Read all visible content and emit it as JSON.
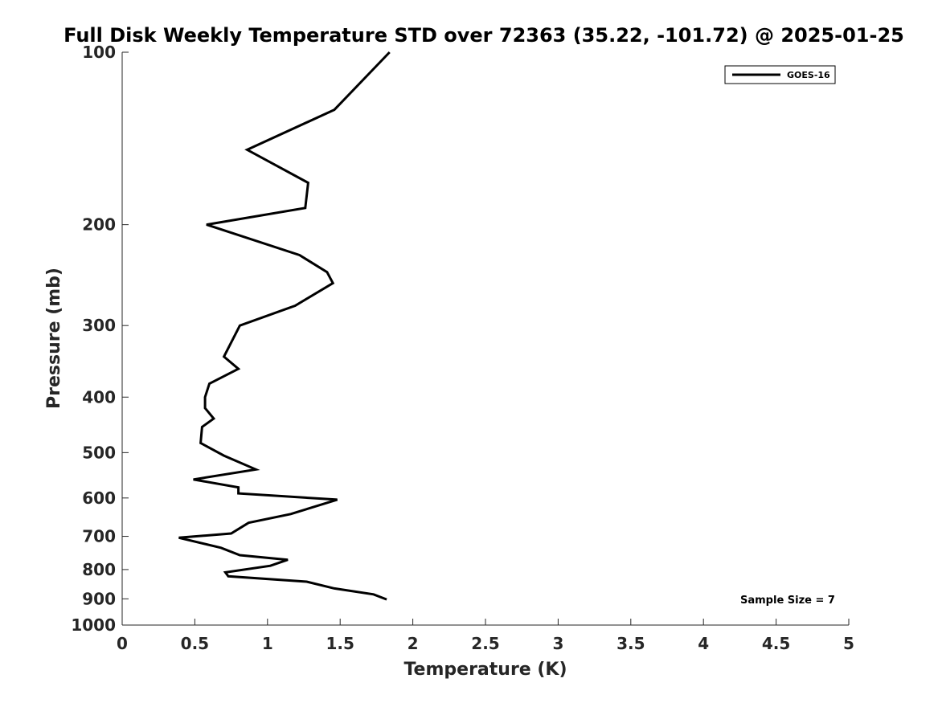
{
  "chart_data": {
    "type": "line",
    "title": "Full Disk Weekly Temperature STD over 72363 (35.22, -101.72) @ 2025-01-25",
    "xlabel": "Temperature (K)",
    "ylabel": "Pressure (mb)",
    "xlim": [
      0,
      5
    ],
    "ylim": [
      100,
      1000
    ],
    "y_scale": "log",
    "y_reversed": true,
    "x_ticks": [
      "0",
      "0.5",
      "1",
      "1.5",
      "2",
      "2.5",
      "3",
      "3.5",
      "4",
      "4.5",
      "5"
    ],
    "x_tick_values": [
      0,
      0.5,
      1,
      1.5,
      2,
      2.5,
      3,
      3.5,
      4,
      4.5,
      5
    ],
    "y_ticks": [
      "100",
      "200",
      "300",
      "400",
      "500",
      "600",
      "700",
      "800",
      "900",
      "1000"
    ],
    "y_tick_values": [
      100,
      200,
      300,
      400,
      500,
      600,
      700,
      800,
      900,
      1000
    ],
    "grid": false,
    "legend_position": "top-right",
    "series": [
      {
        "name": "GOES-16",
        "color": "#000000",
        "points": [
          [
            1.84,
            100
          ],
          [
            1.46,
            126
          ],
          [
            0.86,
            148
          ],
          [
            1.28,
            169
          ],
          [
            1.26,
            187
          ],
          [
            0.58,
            200
          ],
          [
            1.22,
            226
          ],
          [
            1.41,
            242
          ],
          [
            1.45,
            253
          ],
          [
            1.19,
            277
          ],
          [
            0.81,
            300
          ],
          [
            0.7,
            340
          ],
          [
            0.8,
            357
          ],
          [
            0.6,
            379
          ],
          [
            0.57,
            400
          ],
          [
            0.57,
            418
          ],
          [
            0.63,
            436
          ],
          [
            0.55,
            451
          ],
          [
            0.54,
            481
          ],
          [
            0.7,
            506
          ],
          [
            0.92,
            535
          ],
          [
            0.49,
            557
          ],
          [
            0.8,
            575
          ],
          [
            0.8,
            589
          ],
          [
            1.48,
            604
          ],
          [
            1.16,
            640
          ],
          [
            0.87,
            663
          ],
          [
            0.75,
            692
          ],
          [
            0.39,
            704
          ],
          [
            0.68,
            733
          ],
          [
            0.81,
            755
          ],
          [
            1.14,
            769
          ],
          [
            1.02,
            788
          ],
          [
            0.71,
            809
          ],
          [
            0.73,
            822
          ],
          [
            1.27,
            840
          ],
          [
            1.46,
            863
          ],
          [
            1.73,
            884
          ],
          [
            1.82,
            902
          ]
        ]
      }
    ],
    "annotations": [
      "Sample Size = 7"
    ]
  }
}
